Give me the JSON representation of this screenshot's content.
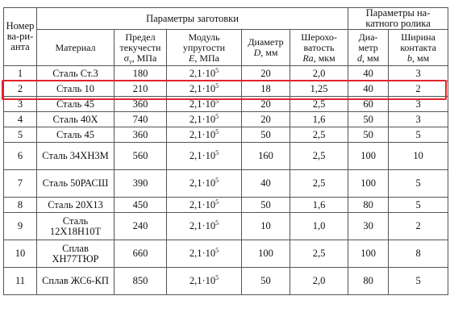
{
  "header": {
    "variant": "Номер ва-ри-анта",
    "blank_params": "Параметры заготовки",
    "roller_params": "Параметры на-катного ролика",
    "material": "Материал",
    "yield": "Предел текучести",
    "yield_symbol": "σ",
    "yield_sub": "т",
    "yield_unit": ", МПа",
    "modulus": "Модуль упругости",
    "modulus_symbol": "E",
    "modulus_unit": ", МПа",
    "diameter": "Диаметр",
    "diameter_symbol": "D",
    "diameter_unit": ", мм",
    "roughness": "Шерохо-ватость",
    "roughness_symbol": "Ra",
    "roughness_unit": ", мкм",
    "roller_diameter": "Диа-метр",
    "roller_diameter_symbol": "d",
    "roller_diameter_unit": ", мм",
    "contact_width": "Ширина контакта",
    "contact_width_symbol": "b",
    "contact_width_unit": ", мм"
  },
  "modulus_base": "2,1·10",
  "modulus_exp": "5",
  "rows": [
    {
      "n": "1",
      "material": "Сталь Ст.3",
      "yield": "180",
      "D": "20",
      "Ra": "2,0",
      "d": "40",
      "b": "3"
    },
    {
      "n": "2",
      "material": "Сталь 10",
      "yield": "210",
      "D": "18",
      "Ra": "1,25",
      "d": "40",
      "b": "2"
    },
    {
      "n": "3",
      "material": "Сталь 45",
      "yield": "360",
      "D": "20",
      "Ra": "2,5",
      "d": "60",
      "b": "3"
    },
    {
      "n": "4",
      "material": "Сталь 40Х",
      "yield": "740",
      "D": "20",
      "Ra": "1,6",
      "d": "50",
      "b": "3"
    },
    {
      "n": "5",
      "material": "Сталь 45",
      "yield": "360",
      "D": "50",
      "Ra": "2,5",
      "d": "50",
      "b": "5"
    },
    {
      "n": "6",
      "material": "Сталь 34ХН3М",
      "yield": "560",
      "D": "160",
      "Ra": "2,5",
      "d": "100",
      "b": "10"
    },
    {
      "n": "7",
      "material": "Сталь 50РАСШ",
      "yield": "390",
      "D": "40",
      "Ra": "2,5",
      "d": "100",
      "b": "5"
    },
    {
      "n": "8",
      "material": "Сталь 20Х13",
      "yield": "450",
      "D": "50",
      "Ra": "1,6",
      "d": "80",
      "b": "5"
    },
    {
      "n": "9",
      "material": "Сталь 12Х18Н10Т",
      "yield": "240",
      "D": "10",
      "Ra": "1,0",
      "d": "30",
      "b": "2"
    },
    {
      "n": "10",
      "material": "Сплав ХН77ТЮР",
      "yield": "660",
      "D": "100",
      "Ra": "2,5",
      "d": "100",
      "b": "8"
    },
    {
      "n": "11",
      "material": "Сплав ЖС6-КП",
      "yield": "850",
      "D": "50",
      "Ra": "2,0",
      "d": "80",
      "b": "5"
    }
  ],
  "highlight_color": "#e0252b"
}
